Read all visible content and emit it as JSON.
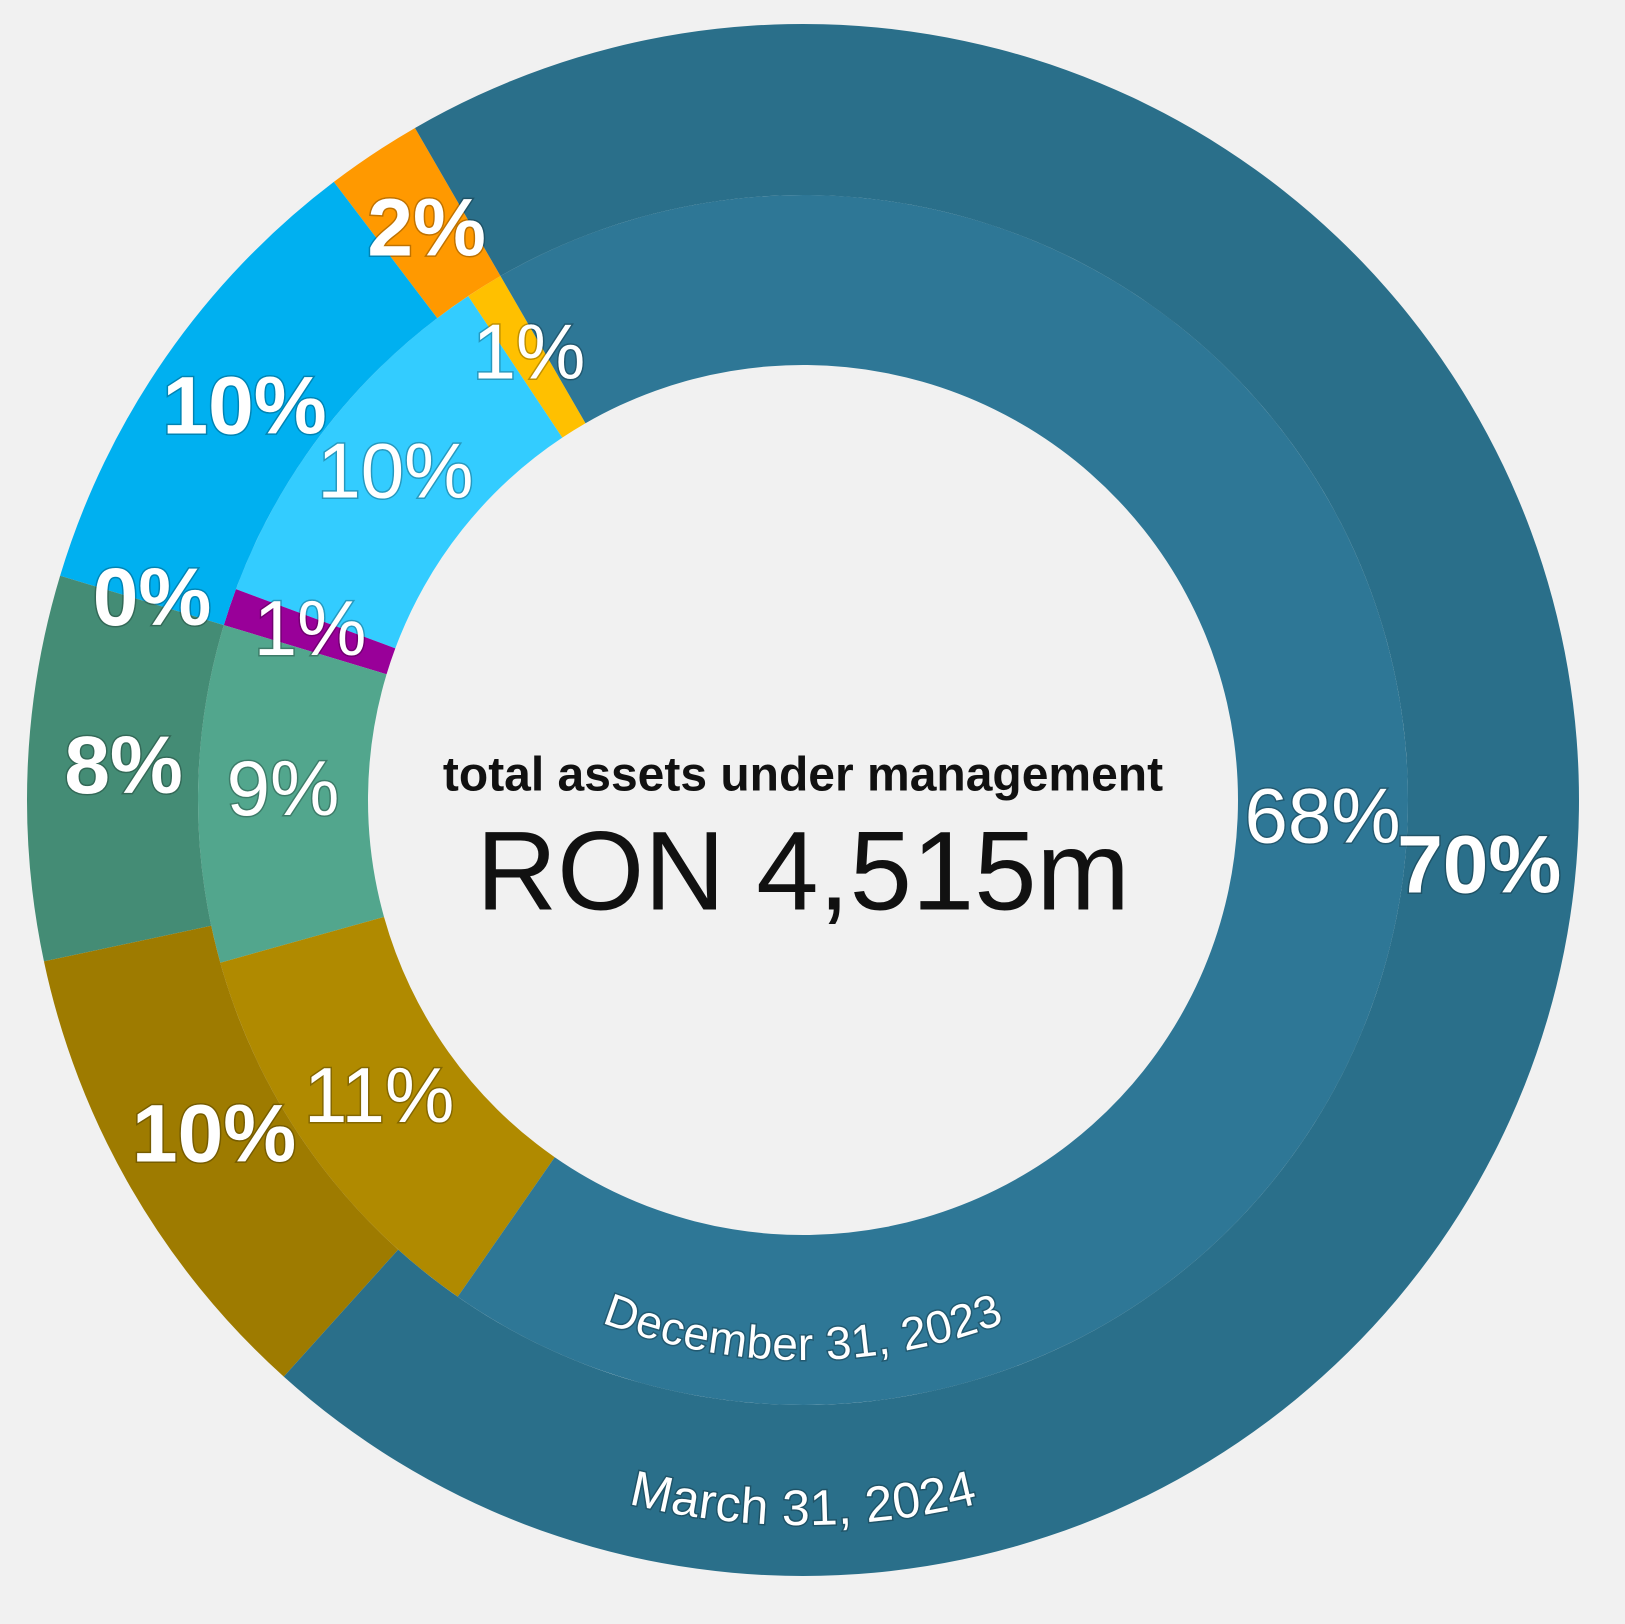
{
  "chart_data": {
    "type": "donut",
    "title": "total assets under management",
    "subtitle": "RON 4,515m",
    "series": [
      {
        "name": "March 31, 2024",
        "colors": [
          "#2a6f8a",
          "#9e7b00",
          "#448c75",
          "#8a008a",
          "#00b0f0",
          "#ff9900"
        ],
        "values": [
          70,
          10,
          8,
          0,
          10,
          2
        ],
        "value_labels": [
          "70%",
          "10%",
          "8%",
          "0%",
          "10%",
          "2%"
        ]
      },
      {
        "name": "December 31, 2023",
        "colors": [
          "#2e7796",
          "#b08a00",
          "#52a68d",
          "#990099",
          "#33ccff",
          "#ffc000"
        ],
        "values": [
          68,
          11,
          9,
          1,
          10,
          1
        ],
        "value_labels": [
          "68%",
          "11%",
          "9%",
          "1%",
          "10%",
          "1%"
        ]
      }
    ]
  }
}
